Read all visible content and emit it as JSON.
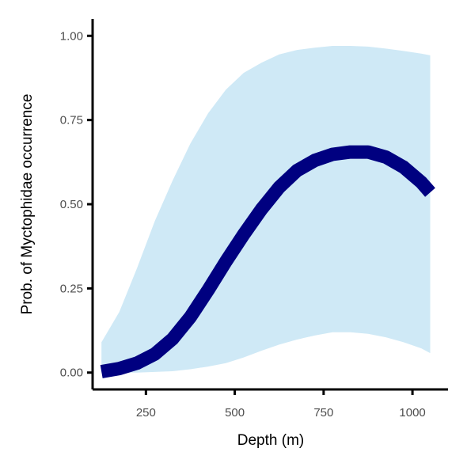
{
  "chart_data": {
    "type": "line",
    "title": "",
    "xlabel": "Depth (m)",
    "ylabel": "Prob. of  Myctophidae  occurrence",
    "xlim": [
      100,
      1100
    ],
    "ylim": [
      -0.05,
      1.05
    ],
    "xticks": [
      250,
      500,
      750,
      1000
    ],
    "xtick_labels": [
      "250",
      "500",
      "750",
      "1000"
    ],
    "yticks": [
      0,
      0.25,
      0.5,
      0.75,
      1.0
    ],
    "ytick_labels": [
      "0.00",
      "0.25",
      "0.50",
      "0.75",
      "1.00"
    ],
    "grid": false,
    "legend": "none",
    "colors": {
      "line": "#000080",
      "ribbon": "#cfe9f6",
      "axis": "#000000",
      "tick_text": "#4d4d4d"
    },
    "series": [
      {
        "x": [
          125,
          175,
          225,
          275,
          325,
          375,
          425,
          475,
          525,
          575,
          625,
          675,
          725,
          775,
          825,
          875,
          925,
          975,
          1025,
          1050
        ],
        "y": [
          0.003,
          0.012,
          0.028,
          0.055,
          0.1,
          0.165,
          0.245,
          0.33,
          0.41,
          0.485,
          0.55,
          0.6,
          0.63,
          0.648,
          0.655,
          0.655,
          0.64,
          0.61,
          0.565,
          0.535
        ],
        "lower": [
          0.0,
          0.0,
          0.0,
          0.002,
          0.004,
          0.01,
          0.018,
          0.028,
          0.045,
          0.065,
          0.083,
          0.098,
          0.11,
          0.12,
          0.12,
          0.115,
          0.105,
          0.09,
          0.072,
          0.058
        ],
        "upper": [
          0.09,
          0.18,
          0.31,
          0.45,
          0.57,
          0.68,
          0.77,
          0.84,
          0.89,
          0.92,
          0.945,
          0.958,
          0.965,
          0.97,
          0.97,
          0.968,
          0.962,
          0.955,
          0.947,
          0.942
        ]
      }
    ]
  }
}
